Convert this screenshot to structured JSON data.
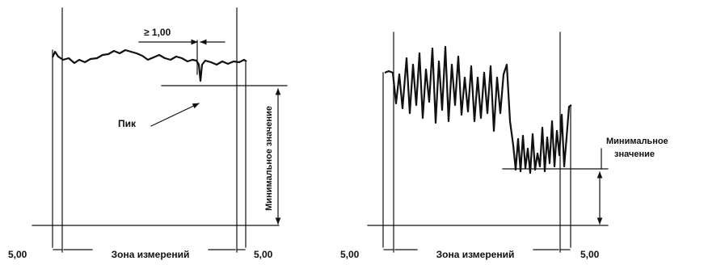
{
  "left_panel": {
    "offset_left": "5,00",
    "zone_label": "Зона измерений",
    "offset_right": "5,00",
    "spacing_label": "≥ 1,00",
    "peak_label": "Пик",
    "min_value_label": "Минимальное значение"
  },
  "right_panel": {
    "offset_left": "5,00",
    "zone_label": "Зона измерений",
    "offset_right": "5,00",
    "min_value_label_line1": "Минимальное",
    "min_value_label_line2": "значение"
  }
}
